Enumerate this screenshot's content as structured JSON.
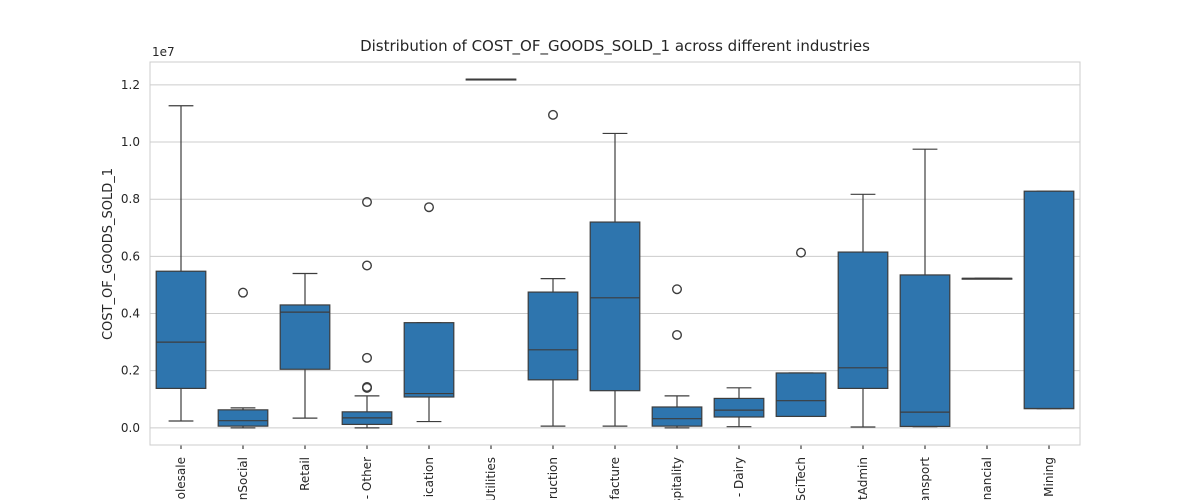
{
  "chart_data": {
    "type": "box",
    "title": "Distribution of COST_OF_GOODS_SOLD_1 across different industries",
    "xlabel": "",
    "ylabel": "COST_OF_GOODS_SOLD_1",
    "y_offset_label": "1e7",
    "y_scale_multiplier": 10000000,
    "ylim": [
      -0.06,
      1.28
    ],
    "yticks": [
      0.0,
      0.2,
      0.4,
      0.6,
      0.8,
      1.0,
      1.2
    ],
    "ytick_labels": [
      "0.0",
      "0.2",
      "0.4",
      "0.6",
      "0.8",
      "1.0",
      "1.2"
    ],
    "grid": true,
    "box_color": "#2e75ae",
    "line_color": "#3d3d3d",
    "categories": [
      {
        "label": "olesale",
        "q1": 0.138,
        "median": 0.3,
        "q3": 0.548,
        "whisker_low": 0.024,
        "whisker_high": 1.127,
        "fliers": []
      },
      {
        "label": "nSocial",
        "q1": 0.006,
        "median": 0.025,
        "q3": 0.063,
        "whisker_low": 0.0,
        "whisker_high": 0.07,
        "fliers": [
          0.473
        ]
      },
      {
        "label": "Retail",
        "q1": 0.205,
        "median": 0.405,
        "q3": 0.43,
        "whisker_low": 0.034,
        "whisker_high": 0.54,
        "fliers": []
      },
      {
        "label": "- Other",
        "q1": 0.012,
        "median": 0.035,
        "q3": 0.056,
        "whisker_low": 0.0,
        "whisker_high": 0.112,
        "fliers": [
          0.79,
          0.568,
          0.245,
          0.143,
          0.14
        ]
      },
      {
        "label": "ication",
        "q1": 0.108,
        "median": 0.12,
        "q3": 0.368,
        "whisker_low": 0.022,
        "whisker_high": 0.368,
        "fliers": [
          0.772
        ]
      },
      {
        "label": "Utilities",
        "q1": 1.22,
        "median": 1.22,
        "q3": 1.22,
        "whisker_low": 1.22,
        "whisker_high": 1.22,
        "fliers": []
      },
      {
        "label": "ruction",
        "q1": 0.168,
        "median": 0.273,
        "q3": 0.475,
        "whisker_low": 0.006,
        "whisker_high": 0.522,
        "fliers": [
          1.095
        ]
      },
      {
        "label": "facture",
        "q1": 0.13,
        "median": 0.455,
        "q3": 0.72,
        "whisker_low": 0.006,
        "whisker_high": 1.03,
        "fliers": []
      },
      {
        "label": "spitality",
        "q1": 0.006,
        "median": 0.032,
        "q3": 0.073,
        "whisker_low": 0.0,
        "whisker_high": 0.112,
        "fliers": [
          0.485,
          0.325
        ]
      },
      {
        "label": "- Dairy",
        "q1": 0.038,
        "median": 0.062,
        "q3": 0.103,
        "whisker_low": 0.004,
        "whisker_high": 0.14,
        "fliers": []
      },
      {
        "label": "SciTech",
        "q1": 0.04,
        "median": 0.095,
        "q3": 0.192,
        "whisker_low": 0.04,
        "whisker_high": 0.192,
        "fliers": [
          0.613
        ]
      },
      {
        "label": "tAdmin",
        "q1": 0.138,
        "median": 0.21,
        "q3": 0.615,
        "whisker_low": 0.003,
        "whisker_high": 0.817,
        "fliers": []
      },
      {
        "label": "ansport",
        "q1": 0.005,
        "median": 0.055,
        "q3": 0.535,
        "whisker_low": 0.004,
        "whisker_high": 0.975,
        "fliers": []
      },
      {
        "label": "nancial",
        "q1": 0.523,
        "median": 0.523,
        "q3": 0.523,
        "whisker_low": 0.523,
        "whisker_high": 0.523,
        "fliers": []
      },
      {
        "label": "Mining",
        "q1": 0.067,
        "median": 0.068,
        "q3": 0.828,
        "whisker_low": 0.067,
        "whisker_high": 0.828,
        "fliers": []
      }
    ]
  }
}
